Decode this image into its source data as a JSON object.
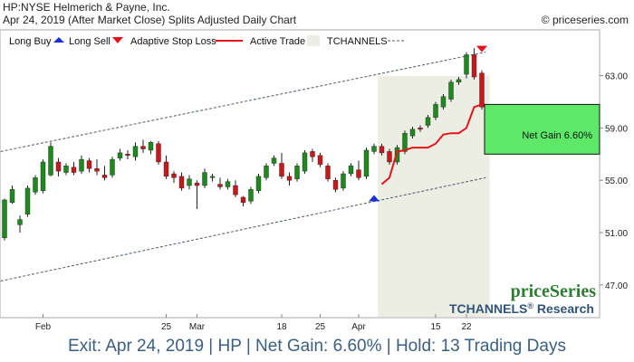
{
  "header": {
    "line1": "HP:NYSE Helmerich & Payne, Inc.",
    "line2": "Apr 24, 2019 (After Market Close)  Splits Adjusted Daily Chart",
    "copyright": "© priceseries.com"
  },
  "legend": {
    "long_buy": "Long Buy",
    "long_sell": "Long Sell",
    "stop_loss": "Adaptive Stop Loss",
    "active_trade": "Active Trade",
    "tchannels": "TCHANNELS"
  },
  "colors": {
    "up": "#1e8a1e",
    "down": "#c8181c",
    "stop": "#e8121a",
    "buy": "#1a2fd6",
    "sell": "#e8121a",
    "channel": "#4a5a70",
    "active": "#eceee4",
    "gain": "#5ee868",
    "footer": "#3a5f80"
  },
  "annotation": {
    "net_gain": "Net Gain 6.60%"
  },
  "branding": {
    "name": "priceSeries",
    "product": "TCHANNELS",
    "reg": "®",
    "research": "Research"
  },
  "footer": {
    "text": "Exit: Apr 24, 2019 | HP | Net Gain: 6.60% | Hold: 13 Trading Days"
  },
  "chart_data": {
    "type": "candlestick",
    "y_ticks": [
      "63.00",
      "59.00",
      "55.00",
      "51.00",
      "47.00"
    ],
    "y_tick_values": [
      63,
      59,
      55,
      51,
      47
    ],
    "ylim": [
      44.5,
      66.5
    ],
    "x_ticks": [
      {
        "label": "Feb",
        "index": 5
      },
      {
        "label": "25",
        "index": 21
      },
      {
        "label": "Mar",
        "index": 25
      },
      {
        "label": "18",
        "index": 36
      },
      {
        "label": "25",
        "index": 41
      },
      {
        "label": "Apr",
        "index": 46
      },
      {
        "label": "15",
        "index": 56
      },
      {
        "label": "22",
        "index": 60
      }
    ],
    "candles": [
      [
        50.6,
        53.5,
        50.4,
        53.6
      ],
      [
        53.3,
        54.3,
        53.2,
        54.6
      ],
      [
        51.6,
        52.0,
        51.0,
        52.3
      ],
      [
        52.4,
        54.4,
        52.2,
        54.6
      ],
      [
        54.1,
        55.2,
        53.9,
        55.4
      ],
      [
        54.2,
        56.4,
        54.0,
        56.6
      ],
      [
        55.4,
        57.6,
        55.3,
        57.9
      ],
      [
        56.4,
        55.7,
        55.3,
        56.7
      ],
      [
        55.6,
        56.1,
        55.4,
        56.3
      ],
      [
        56.0,
        55.6,
        55.4,
        56.4
      ],
      [
        55.7,
        56.6,
        55.5,
        56.9
      ],
      [
        56.5,
        55.9,
        55.6,
        56.7
      ],
      [
        55.9,
        55.7,
        55.4,
        56.6
      ],
      [
        55.4,
        55.2,
        55.0,
        56.1
      ],
      [
        55.4,
        56.6,
        55.2,
        56.8
      ],
      [
        56.7,
        57.1,
        56.5,
        57.4
      ],
      [
        57.0,
        56.9,
        56.6,
        57.3
      ],
      [
        56.8,
        57.6,
        56.5,
        57.9
      ],
      [
        57.6,
        57.4,
        57.1,
        58.1
      ],
      [
        57.3,
        57.9,
        57.0,
        58.0
      ],
      [
        57.8,
        56.4,
        56.2,
        58.0
      ],
      [
        56.4,
        55.3,
        55.1,
        56.9
      ],
      [
        55.5,
        55.2,
        54.8,
        55.7
      ],
      [
        55.3,
        54.4,
        54.2,
        55.6
      ],
      [
        54.6,
        55.1,
        54.3,
        55.4
      ],
      [
        54.8,
        54.6,
        52.8,
        55.0
      ],
      [
        54.6,
        55.6,
        54.4,
        55.9
      ],
      [
        55.2,
        55.3,
        54.9,
        55.5
      ],
      [
        54.7,
        54.5,
        54.3,
        55.2
      ],
      [
        54.5,
        54.9,
        54.3,
        55.1
      ],
      [
        54.6,
        53.9,
        53.7,
        55.0
      ],
      [
        53.7,
        53.3,
        53.0,
        53.8
      ],
      [
        53.4,
        54.3,
        53.2,
        54.5
      ],
      [
        54.2,
        55.3,
        54.0,
        55.5
      ],
      [
        55.2,
        56.1,
        55.0,
        56.3
      ],
      [
        56.3,
        56.7,
        56.1,
        56.9
      ],
      [
        56.3,
        55.3,
        55.1,
        57.1
      ],
      [
        55.3,
        55.0,
        54.6,
        55.6
      ],
      [
        55.1,
        56.1,
        54.9,
        56.3
      ],
      [
        55.7,
        57.1,
        55.5,
        57.3
      ],
      [
        57.2,
        56.8,
        56.4,
        57.4
      ],
      [
        56.9,
        56.2,
        56.0,
        57.1
      ],
      [
        56.1,
        55.1,
        54.9,
        56.3
      ],
      [
        55.0,
        54.3,
        54.1,
        55.2
      ],
      [
        54.4,
        55.5,
        54.2,
        55.7
      ],
      [
        55.5,
        56.1,
        55.3,
        56.3
      ],
      [
        55.8,
        55.2,
        55.0,
        56.5
      ],
      [
        55.3,
        57.3,
        55.1,
        57.5
      ],
      [
        57.2,
        57.6,
        57.0,
        57.8
      ],
      [
        57.6,
        57.1,
        56.9,
        57.8
      ],
      [
        57.2,
        56.4,
        56.2,
        57.4
      ],
      [
        56.4,
        57.5,
        56.2,
        57.7
      ],
      [
        57.2,
        58.6,
        57.0,
        58.8
      ],
      [
        58.4,
        58.9,
        58.2,
        59.1
      ],
      [
        59.0,
        58.9,
        58.7,
        59.2
      ],
      [
        59.2,
        59.8,
        59.0,
        60.0
      ],
      [
        59.8,
        60.8,
        59.6,
        61.0
      ],
      [
        60.6,
        61.4,
        60.4,
        61.6
      ],
      [
        61.2,
        62.5,
        61.0,
        62.7
      ],
      [
        62.5,
        62.7,
        62.3,
        62.9
      ],
      [
        63.1,
        64.6,
        62.8,
        64.8
      ],
      [
        64.6,
        62.9,
        62.7,
        65.1
      ],
      [
        63.2,
        60.6,
        60.4,
        63.4
      ]
    ],
    "stop_loss": [
      {
        "i": 49,
        "v": 54.7
      },
      {
        "i": 50,
        "v": 55.2
      },
      {
        "i": 51,
        "v": 57.2
      },
      {
        "i": 52,
        "v": 57.3
      },
      {
        "i": 53,
        "v": 57.5
      },
      {
        "i": 54,
        "v": 57.5
      },
      {
        "i": 55,
        "v": 57.5
      },
      {
        "i": 56,
        "v": 57.8
      },
      {
        "i": 57,
        "v": 58.5
      },
      {
        "i": 58,
        "v": 58.6
      },
      {
        "i": 59,
        "v": 58.6
      },
      {
        "i": 60,
        "v": 59.0
      },
      {
        "i": 61,
        "v": 60.6
      },
      {
        "i": 62,
        "v": 60.8
      }
    ],
    "channel_upper": [
      {
        "i": -0.5,
        "v": 57.2
      },
      {
        "i": 62.5,
        "v": 64.8
      }
    ],
    "channel_lower": [
      {
        "i": -0.5,
        "v": 47.3
      },
      {
        "i": 62.5,
        "v": 55.2
      }
    ],
    "active_range": [
      48.5,
      63.0
    ],
    "buy_signal": {
      "i": 48,
      "v": 53.6
    },
    "sell_signal": {
      "i": 62,
      "v": 65.0
    },
    "gain_box": {
      "entry": 57.0,
      "exit": 60.8
    }
  }
}
